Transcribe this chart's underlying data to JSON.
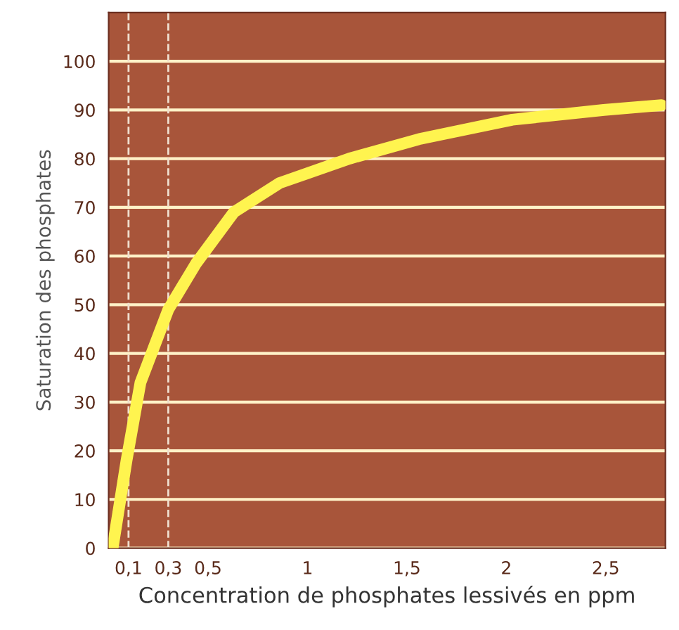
{
  "chart_data": {
    "type": "line",
    "xlabel": "Concentration de phosphates lessivés en ppm",
    "ylabel": "Saturation des phosphates",
    "x": [
      0.02,
      0.09,
      0.16,
      0.3,
      0.44,
      0.63,
      0.86,
      1.21,
      1.56,
      2.03,
      2.49,
      2.78
    ],
    "series": [
      {
        "color": "#fff44f",
        "values": [
          0,
          18,
          34,
          49,
          58.5,
          69,
          75,
          80,
          84,
          88,
          90,
          91
        ]
      }
    ],
    "xlim": [
      0,
      2.8
    ],
    "xticks": [
      {
        "value": 0.1,
        "label": "0,1"
      },
      {
        "value": 0.3,
        "label": "0,3"
      },
      {
        "value": 0.5,
        "label": "0,5"
      },
      1,
      {
        "value": 1.5,
        "label": "1,5"
      },
      2,
      {
        "value": 2.5,
        "label": "2,5"
      }
    ],
    "ylim": [
      0,
      110
    ],
    "yticks": [
      0,
      10,
      20,
      30,
      40,
      50,
      60,
      70,
      80,
      90,
      100
    ],
    "ref_lines": [
      {
        "axis": "x",
        "value": 0.1,
        "label": null,
        "color": "#f0e0d0",
        "line_style": "dashed"
      },
      {
        "axis": "x",
        "value": 0.3,
        "label": null,
        "color": "#f0e0d0",
        "line_style": "dashed"
      }
    ],
    "grid": "y",
    "marker": "none",
    "line_style": "solid"
  }
}
